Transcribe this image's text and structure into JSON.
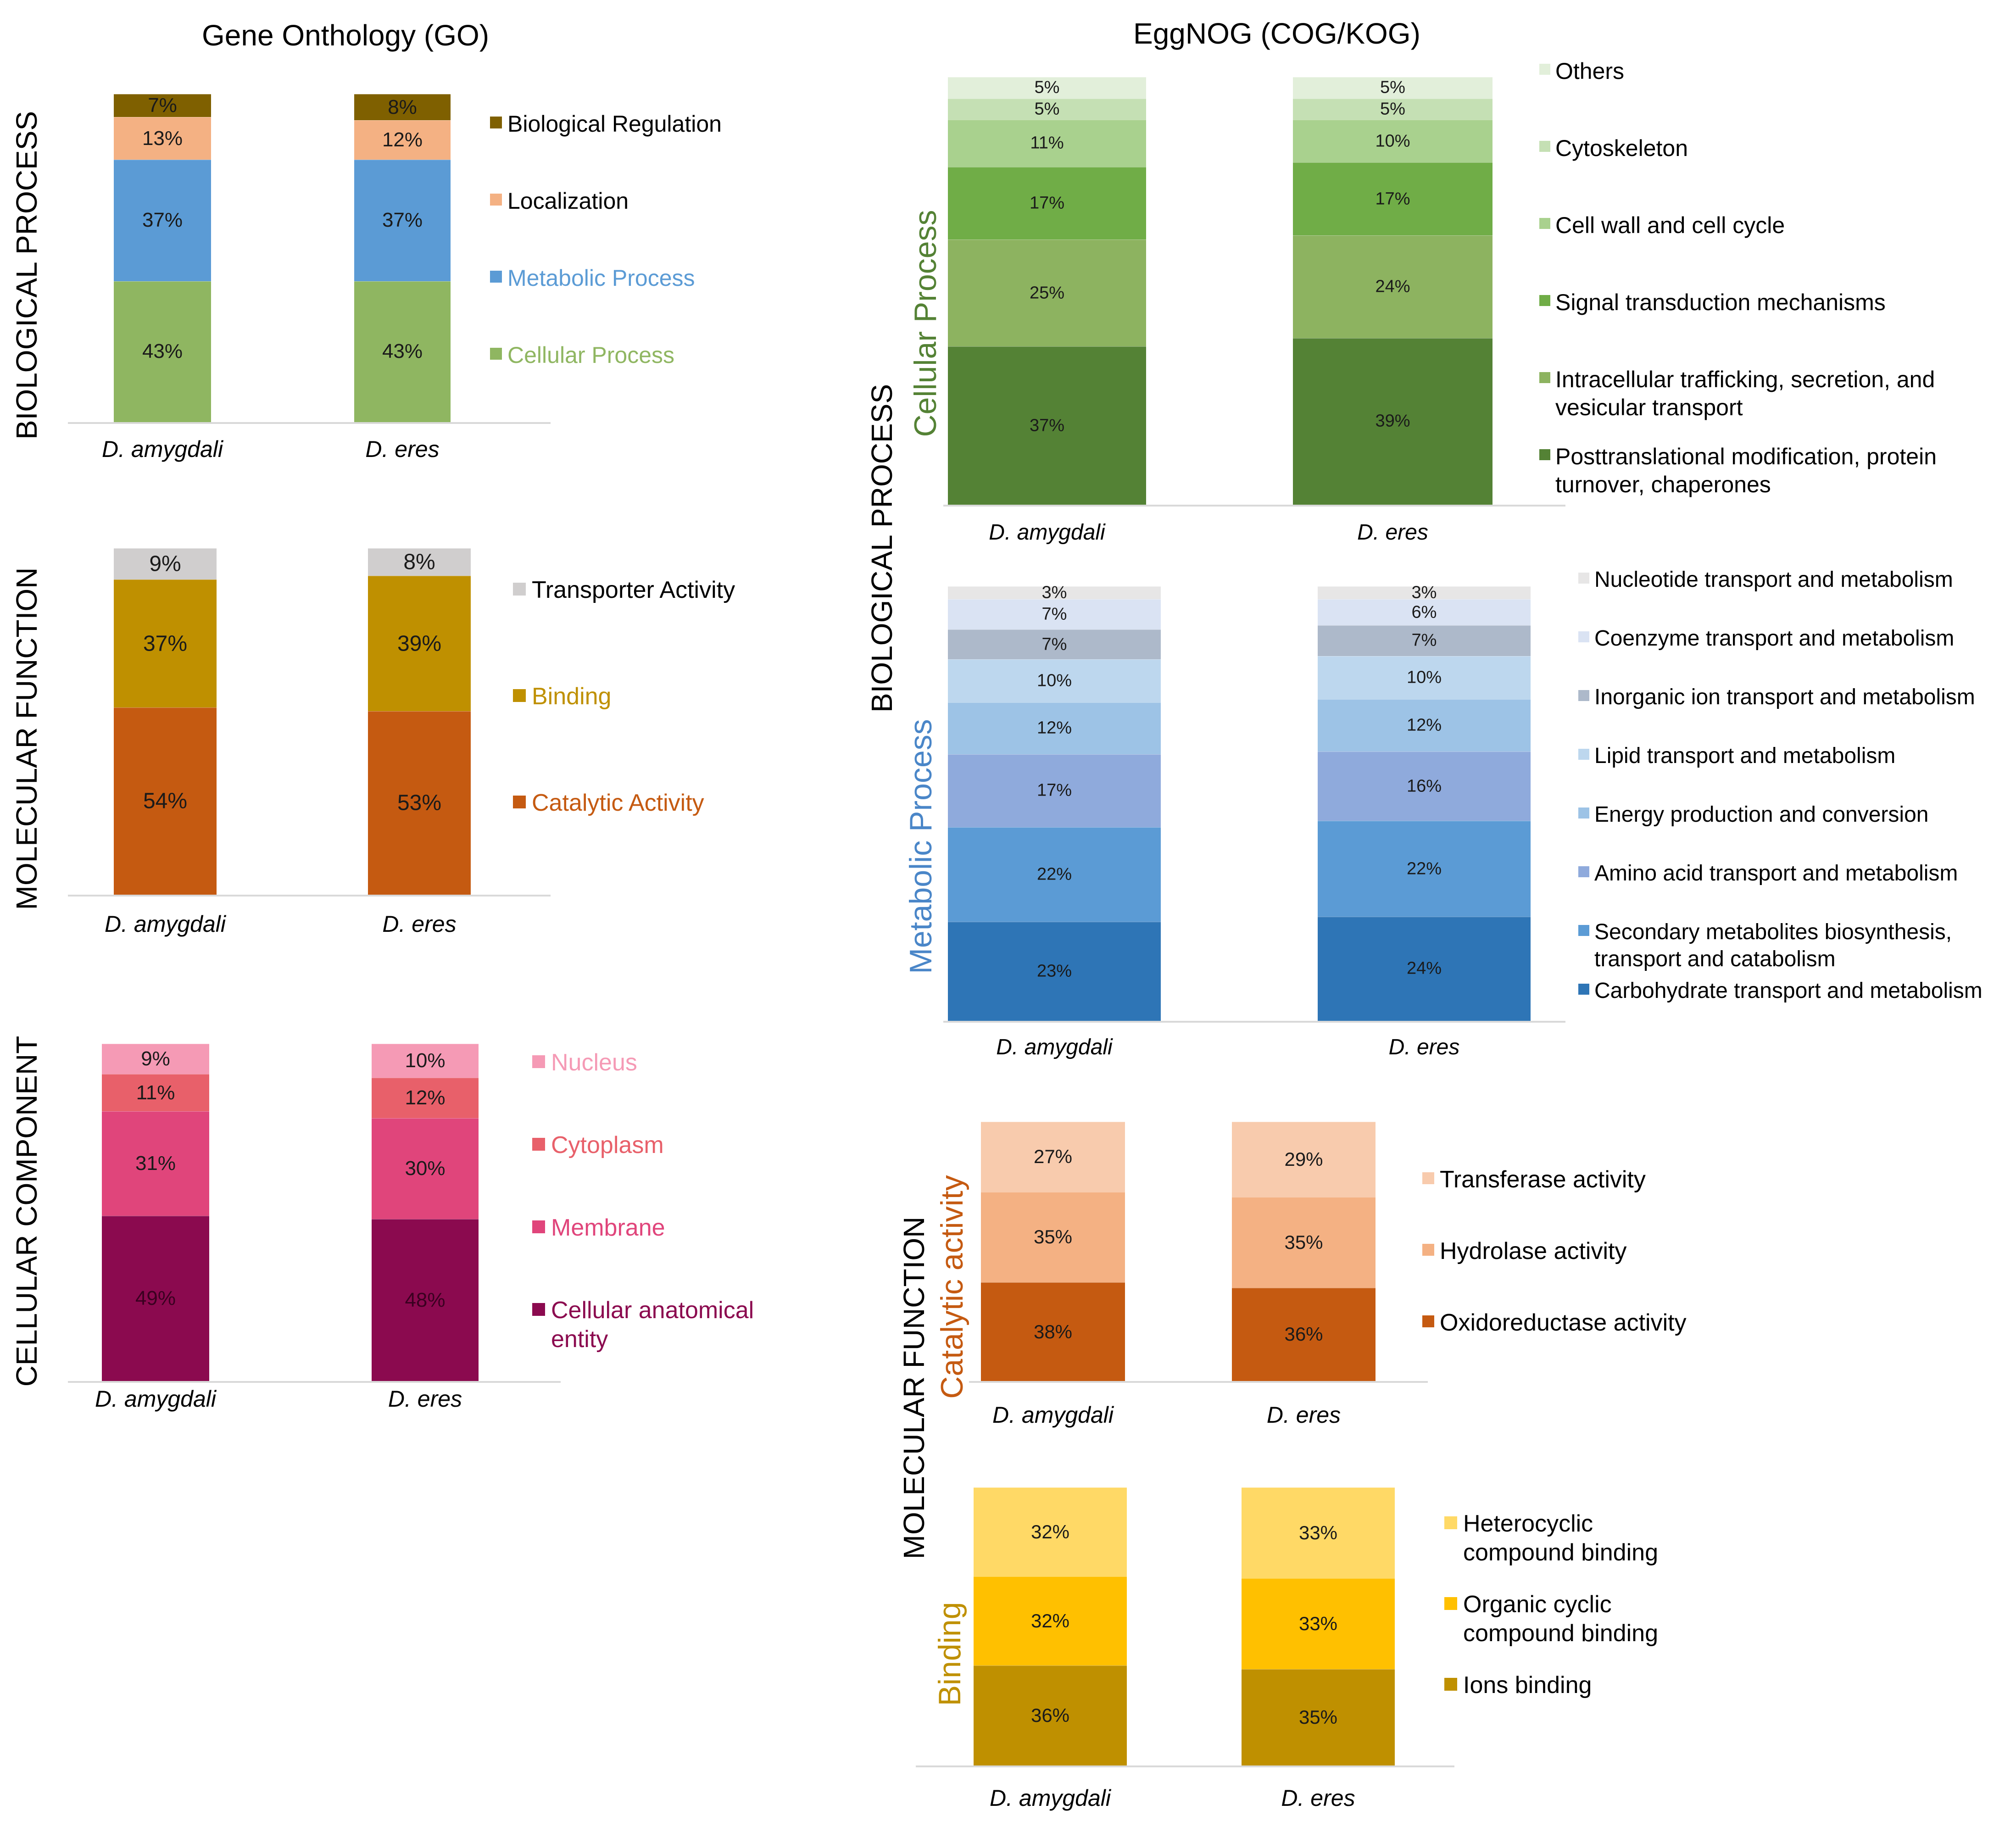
{
  "titles": {
    "go": "Gene Onthology (GO)",
    "eggnog": "EggNOG (COG/KOG)"
  },
  "side_labels": {
    "go_bp": "BIOLOGICAL PROCESS",
    "go_mf": "MOLECULAR FUNCTION",
    "go_cc": "CELLULAR COMPONENT",
    "egg_bp": "BIOLOGICAL PROCESS",
    "egg_mf": "MOLECULAR FUNCTION",
    "egg_cellular": "Cellular Process",
    "egg_metabolic": "Metabolic Process",
    "egg_catalytic": "Catalytic activity",
    "egg_binding": "Binding"
  },
  "chart_data": [
    {
      "id": "go_bp",
      "type": "bar",
      "stacked": true,
      "title": "BIOLOGICAL PROCESS",
      "categories": [
        "D. amygdali",
        "D. eres"
      ],
      "series": [
        {
          "name": "Cellular Process",
          "color": "#8fb661",
          "values": [
            43,
            43
          ]
        },
        {
          "name": "Metabolic Process",
          "color": "#5b9bd5",
          "values": [
            37,
            37
          ]
        },
        {
          "name": "Localization",
          "color": "#f4b183",
          "values": [
            13,
            12
          ]
        },
        {
          "name": "Biological Regulation",
          "color": "#7f6000",
          "values": [
            7,
            8
          ]
        }
      ]
    },
    {
      "id": "go_mf",
      "type": "bar",
      "stacked": true,
      "title": "MOLECULAR FUNCTION",
      "categories": [
        "D. amygdali",
        "D. eres"
      ],
      "series": [
        {
          "name": "Catalytic Activity",
          "color": "#c55a11",
          "values": [
            54,
            53
          ]
        },
        {
          "name": "Binding",
          "color": "#bf9000",
          "values": [
            37,
            39
          ]
        },
        {
          "name": "Transporter Activity",
          "color": "#d0cece",
          "values": [
            9,
            8
          ]
        }
      ]
    },
    {
      "id": "go_cc",
      "type": "bar",
      "stacked": true,
      "title": "CELLULAR COMPONENT",
      "categories": [
        "D. amygdali",
        "D. eres"
      ],
      "series": [
        {
          "name": "Cellular anatomical entity",
          "color": "#8b0a4f",
          "values": [
            49,
            48
          ]
        },
        {
          "name": "Membrane",
          "color": "#e0457b",
          "values": [
            31,
            30
          ]
        },
        {
          "name": "Cytoplasm",
          "color": "#e8606a",
          "values": [
            11,
            12
          ]
        },
        {
          "name": "Nucleus",
          "color": "#f59ab5",
          "values": [
            9,
            10
          ]
        }
      ]
    },
    {
      "id": "egg_cp",
      "type": "bar",
      "stacked": true,
      "title": "Cellular Process",
      "categories": [
        "D. amygdali",
        "D. eres"
      ],
      "series": [
        {
          "name": "Posttranslational modification, protein turnover, chaperones",
          "color": "#548235",
          "values": [
            37,
            39
          ]
        },
        {
          "name": "Intracellular trafficking, secretion, and vesicular transport",
          "color": "#8db360",
          "values": [
            25,
            24
          ]
        },
        {
          "name": "Signal transduction mechanisms",
          "color": "#70ad47",
          "values": [
            17,
            17
          ]
        },
        {
          "name": "Cell wall and cell cycle",
          "color": "#a9d18e",
          "values": [
            11,
            10
          ]
        },
        {
          "name": "Cytoskeleton",
          "color": "#c5e0b4",
          "values": [
            5,
            5
          ]
        },
        {
          "name": "Others",
          "color": "#e2efda",
          "values": [
            5,
            5
          ]
        }
      ]
    },
    {
      "id": "egg_mp",
      "type": "bar",
      "stacked": true,
      "title": "Metabolic Process",
      "categories": [
        "D. amygdali",
        "D. eres"
      ],
      "series": [
        {
          "name": "Carbohydrate transport and metabolism",
          "color": "#2e75b6",
          "values": [
            23,
            24
          ]
        },
        {
          "name": "Secondary metabolites biosynthesis, transport and catabolism",
          "color": "#5b9bd5",
          "values": [
            22,
            22
          ]
        },
        {
          "name": "Amino acid transport and metabolism",
          "color": "#8faadc",
          "values": [
            17,
            16
          ]
        },
        {
          "name": "Energy production and conversion",
          "color": "#9dc3e6",
          "values": [
            12,
            12
          ]
        },
        {
          "name": "Lipid transport and metabolism",
          "color": "#bdd7ee",
          "values": [
            10,
            10
          ]
        },
        {
          "name": "Inorganic ion transport and metabolism",
          "color": "#adb9ca",
          "values": [
            7,
            7
          ]
        },
        {
          "name": "Coenzyme transport and metabolism",
          "color": "#dae3f3",
          "values": [
            7,
            6
          ]
        },
        {
          "name": "Nucleotide transport and metabolism",
          "color": "#e7e6e6",
          "values": [
            3,
            3
          ]
        }
      ]
    },
    {
      "id": "egg_cat",
      "type": "bar",
      "stacked": true,
      "title": "Catalytic activity",
      "categories": [
        "D. amygdali",
        "D. eres"
      ],
      "series": [
        {
          "name": "Oxidoreductase activity",
          "color": "#c55a11",
          "values": [
            38,
            36
          ]
        },
        {
          "name": "Hydrolase activity",
          "color": "#f4b183",
          "values": [
            35,
            35
          ]
        },
        {
          "name": "Transferase activity",
          "color": "#f8cbad",
          "values": [
            27,
            29
          ]
        }
      ]
    },
    {
      "id": "egg_bind",
      "type": "bar",
      "stacked": true,
      "title": "Binding",
      "categories": [
        "D. amygdali",
        "D. eres"
      ],
      "series": [
        {
          "name": "Ions binding",
          "color": "#bf9000",
          "values": [
            36,
            35
          ]
        },
        {
          "name": "Organic cyclic compound binding",
          "color": "#ffc000",
          "values": [
            32,
            33
          ]
        },
        {
          "name": "Heterocyclic compound binding",
          "color": "#ffd966",
          "values": [
            32,
            33
          ]
        }
      ]
    }
  ]
}
